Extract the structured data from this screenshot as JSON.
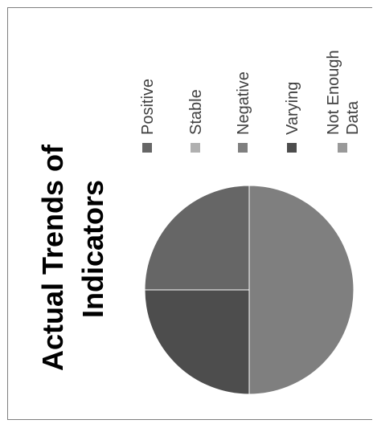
{
  "chart_data": {
    "type": "pie",
    "title_lines": [
      "Actual Trends of",
      "Indicators"
    ],
    "legend_position": "top (rotated 90°)",
    "series": [
      {
        "name": "Positive",
        "value": 25,
        "color": "#666666"
      },
      {
        "name": "Stable",
        "value": 0,
        "color": "#b0b0b0"
      },
      {
        "name": "Negative",
        "value": 50,
        "color": "#7f7f7f"
      },
      {
        "name": "Varying",
        "value": 25,
        "color": "#4d4d4d"
      },
      {
        "name": "Not Enough Data",
        "value": 0,
        "color": "#999999",
        "label_lines": [
          "Not Enough",
          "Data"
        ]
      }
    ]
  }
}
